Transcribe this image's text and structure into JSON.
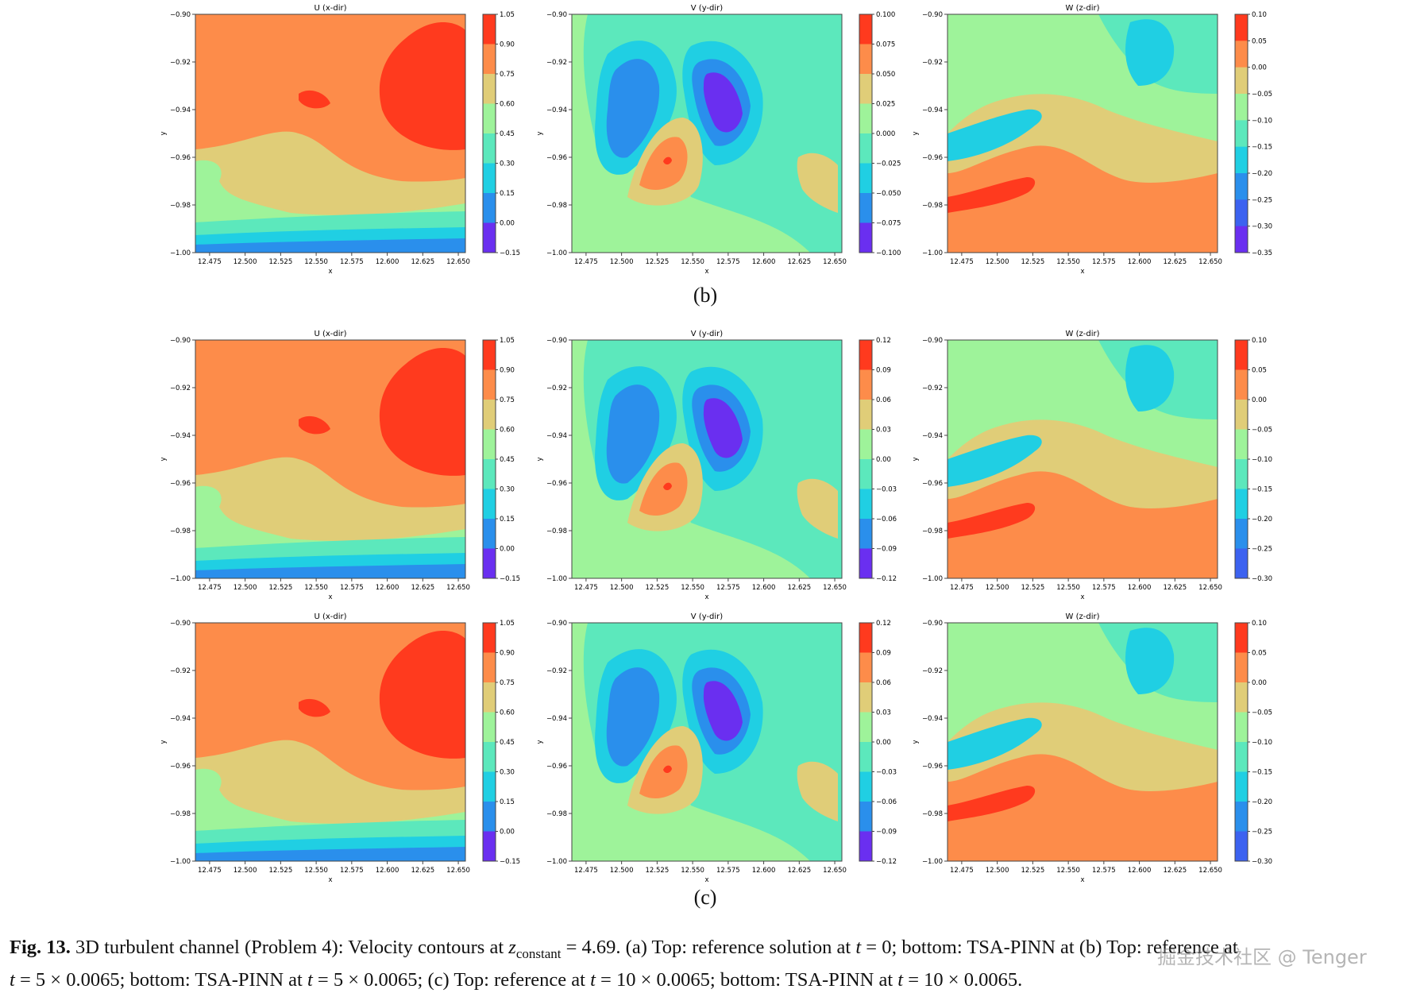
{
  "figure": {
    "panel_labels": [
      "(b)",
      "(c)"
    ],
    "caption": {
      "fig_label": "Fig. 13.",
      "p1": " 3D turbulent channel (Problem 4): Velocity contours at ",
      "z_var": "z",
      "z_sub": "constant",
      "p2": " = 4.69. (a) Top: reference solution at ",
      "t": "t",
      "p3": " = 0; bottom: TSA-PINN at (b) Top: reference at",
      "p4": " = 5 × 0.0065; bottom: TSA-PINN at ",
      "p5": " = 5 × 0.0065; (c) Top: reference at ",
      "p6": " = 10 × 0.0065; bottom: TSA-PINN at ",
      "p7": " = 10 × 0.0065."
    },
    "watermark": "掘金技术社区 @ Tenger"
  },
  "chart_data": [
    {
      "type": "heatmap",
      "panel": "b",
      "row": "single",
      "title": "U (x-dir)",
      "xlabel": "x",
      "ylabel": "y",
      "xticks": [
        "12.475",
        "12.500",
        "12.525",
        "12.550",
        "12.575",
        "12.600",
        "12.625",
        "12.650"
      ],
      "yticks": [
        "−0.90",
        "−0.92",
        "−0.94",
        "−0.96",
        "−0.98",
        "−1.00"
      ],
      "xlim": [
        12.465,
        12.655
      ],
      "ylim": [
        -1.0,
        -0.9
      ],
      "colorbar": [
        "1.05",
        "0.90",
        "0.75",
        "0.60",
        "0.45",
        "0.30",
        "0.15",
        "0.00",
        "−0.15"
      ]
    },
    {
      "type": "heatmap",
      "panel": "b",
      "row": "single",
      "title": "V (y-dir)",
      "xlabel": "x",
      "ylabel": "y",
      "xticks": [
        "12.475",
        "12.500",
        "12.525",
        "12.550",
        "12.575",
        "12.600",
        "12.625",
        "12.650"
      ],
      "yticks": [
        "−0.90",
        "−0.92",
        "−0.94",
        "−0.96",
        "−0.98",
        "−1.00"
      ],
      "xlim": [
        12.465,
        12.655
      ],
      "ylim": [
        -1.0,
        -0.9
      ],
      "colorbar": [
        "0.100",
        "0.075",
        "0.050",
        "0.025",
        "0.000",
        "−0.025",
        "−0.050",
        "−0.075",
        "−0.100"
      ]
    },
    {
      "type": "heatmap",
      "panel": "b",
      "row": "single",
      "title": "W (z-dir)",
      "xlabel": "x",
      "ylabel": "y",
      "xticks": [
        "12.475",
        "12.500",
        "12.525",
        "12.550",
        "12.575",
        "12.600",
        "12.625",
        "12.650"
      ],
      "yticks": [
        "−0.90",
        "−0.92",
        "−0.94",
        "−0.96",
        "−0.98",
        "−1.00"
      ],
      "xlim": [
        12.465,
        12.655
      ],
      "ylim": [
        -1.0,
        -0.9
      ],
      "colorbar": [
        "0.10",
        "0.05",
        "0.00",
        "−0.05",
        "−0.10",
        "−0.15",
        "−0.20",
        "−0.25",
        "−0.30",
        "−0.35"
      ]
    },
    {
      "type": "heatmap",
      "panel": "c",
      "row": "top",
      "title": "U (x-dir)",
      "xlabel": "x",
      "ylabel": "y",
      "xticks": [
        "12.475",
        "12.500",
        "12.525",
        "12.550",
        "12.575",
        "12.600",
        "12.625",
        "12.650"
      ],
      "yticks": [
        "−0.90",
        "−0.92",
        "−0.94",
        "−0.96",
        "−0.98",
        "−1.00"
      ],
      "xlim": [
        12.465,
        12.655
      ],
      "ylim": [
        -1.0,
        -0.9
      ],
      "colorbar": [
        "1.05",
        "0.90",
        "0.75",
        "0.60",
        "0.45",
        "0.30",
        "0.15",
        "0.00",
        "−0.15"
      ]
    },
    {
      "type": "heatmap",
      "panel": "c",
      "row": "top",
      "title": "V (y-dir)",
      "xlabel": "x",
      "ylabel": "y",
      "xticks": [
        "12.475",
        "12.500",
        "12.525",
        "12.550",
        "12.575",
        "12.600",
        "12.625",
        "12.650"
      ],
      "yticks": [
        "−0.90",
        "−0.92",
        "−0.94",
        "−0.96",
        "−0.98",
        "−1.00"
      ],
      "xlim": [
        12.465,
        12.655
      ],
      "ylim": [
        -1.0,
        -0.9
      ],
      "colorbar": [
        "0.12",
        "0.09",
        "0.06",
        "0.03",
        "0.00",
        "−0.03",
        "−0.06",
        "−0.09",
        "−0.12"
      ]
    },
    {
      "type": "heatmap",
      "panel": "c",
      "row": "top",
      "title": "W (z-dir)",
      "xlabel": "x",
      "ylabel": "y",
      "xticks": [
        "12.475",
        "12.500",
        "12.525",
        "12.550",
        "12.575",
        "12.600",
        "12.625",
        "12.650"
      ],
      "yticks": [
        "−0.90",
        "−0.92",
        "−0.94",
        "−0.96",
        "−0.98",
        "−1.00"
      ],
      "xlim": [
        12.465,
        12.655
      ],
      "ylim": [
        -1.0,
        -0.9
      ],
      "colorbar": [
        "0.10",
        "0.05",
        "0.00",
        "−0.05",
        "−0.10",
        "−0.15",
        "−0.20",
        "−0.25",
        "−0.30"
      ]
    },
    {
      "type": "heatmap",
      "panel": "c",
      "row": "bottom",
      "title": "U (x-dir)",
      "xlabel": "x",
      "ylabel": "y",
      "xticks": [
        "12.475",
        "12.500",
        "12.525",
        "12.550",
        "12.575",
        "12.600",
        "12.625",
        "12.650"
      ],
      "yticks": [
        "−0.90",
        "−0.92",
        "−0.94",
        "−0.96",
        "−0.98",
        "−1.00"
      ],
      "xlim": [
        12.465,
        12.655
      ],
      "ylim": [
        -1.0,
        -0.9
      ],
      "colorbar": [
        "1.05",
        "0.90",
        "0.75",
        "0.60",
        "0.45",
        "0.30",
        "0.15",
        "0.00",
        "−0.15"
      ]
    },
    {
      "type": "heatmap",
      "panel": "c",
      "row": "bottom",
      "title": "V (y-dir)",
      "xlabel": "x",
      "ylabel": "y",
      "xticks": [
        "12.475",
        "12.500",
        "12.525",
        "12.550",
        "12.575",
        "12.600",
        "12.625",
        "12.650"
      ],
      "yticks": [
        "−0.90",
        "−0.92",
        "−0.94",
        "−0.96",
        "−0.98",
        "−1.00"
      ],
      "xlim": [
        12.465,
        12.655
      ],
      "ylim": [
        -1.0,
        -0.9
      ],
      "colorbar": [
        "0.12",
        "0.09",
        "0.06",
        "0.03",
        "0.00",
        "−0.03",
        "−0.06",
        "−0.09",
        "−0.12"
      ]
    },
    {
      "type": "heatmap",
      "panel": "c",
      "row": "bottom",
      "title": "W (z-dir)",
      "xlabel": "x",
      "ylabel": "y",
      "xticks": [
        "12.475",
        "12.500",
        "12.525",
        "12.550",
        "12.575",
        "12.600",
        "12.625",
        "12.650"
      ],
      "yticks": [
        "−0.90",
        "−0.92",
        "−0.94",
        "−0.96",
        "−0.98",
        "−1.00"
      ],
      "xlim": [
        12.465,
        12.655
      ],
      "ylim": [
        -1.0,
        -0.9
      ],
      "colorbar": [
        "0.10",
        "0.05",
        "0.00",
        "−0.05",
        "−0.10",
        "−0.15",
        "−0.20",
        "−0.25",
        "−0.30"
      ]
    }
  ]
}
